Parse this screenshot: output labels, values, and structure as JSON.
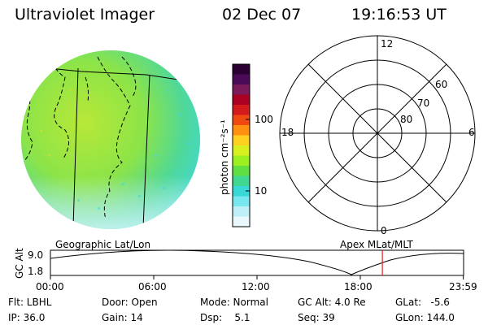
{
  "header": {
    "instrument": "Ultraviolet Imager",
    "date": "02 Dec 07",
    "time": "19:16:53 UT"
  },
  "colorbar": {
    "label": "photon cm⁻²s⁻¹",
    "ticks": [
      "100",
      "10"
    ],
    "colors": [
      "#2a0033",
      "#4a0a55",
      "#7a1a5a",
      "#aa0022",
      "#d41a1a",
      "#f04a10",
      "#ff9010",
      "#ffd020",
      "#d8f020",
      "#9cf020",
      "#60e040",
      "#40d890",
      "#38d8d8",
      "#78e8f0",
      "#bff0f8",
      "#e8f8fc"
    ]
  },
  "polar_plot": {
    "clock_labels": {
      "top": "12",
      "left": "18",
      "right": "6",
      "bottom": "0"
    },
    "lat_labels": [
      "60",
      "70",
      "80"
    ]
  },
  "map_labels": {
    "left": "Geographic Lat/Lon",
    "right": "Apex  MLat/MLT"
  },
  "timeline": {
    "ylabel": "GC Alt",
    "ymax": "9.0",
    "ymin": "1.8",
    "xticks": [
      "00:00",
      "06:00",
      "12:00",
      "18:00",
      "23:59"
    ],
    "marker_time": "19:16:53",
    "marker_color": "#dd2222"
  },
  "info": {
    "flt": "Flt: LBHL",
    "ip": "IP: 36.0",
    "door": "Door: Open",
    "gain": "Gain: 14",
    "mode": "Mode: Normal",
    "dsp": "Dsp:    5.1",
    "gc_alt": "GC Alt: 4.0 Re",
    "seq": "Seq: 39",
    "glat": "GLat:   -5.6",
    "glon": "GLon: 144.0"
  }
}
